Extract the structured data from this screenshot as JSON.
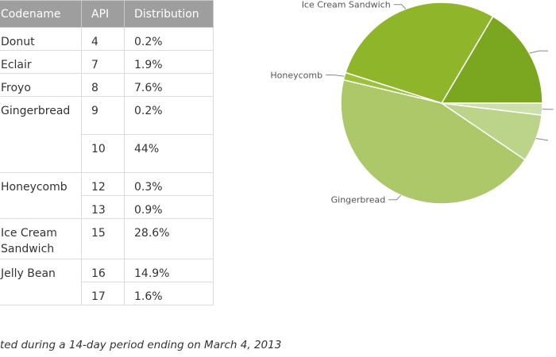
{
  "table": {
    "headers": [
      "Codename",
      "API",
      "Distribution"
    ],
    "rows": [
      {
        "codename": "Donut",
        "api": "4",
        "dist": "0.2%"
      },
      {
        "codename": "Eclair",
        "api": "7",
        "dist": "1.9%"
      },
      {
        "codename": "Froyo",
        "api": "8",
        "dist": "7.6%"
      },
      {
        "codename": "Gingerbread",
        "api": "9",
        "dist": "0.2%"
      },
      {
        "codename": "",
        "api": "10",
        "dist": "44%"
      },
      {
        "codename": "Honeycomb",
        "api": "12",
        "dist": "0.3%"
      },
      {
        "codename": "",
        "api": "13",
        "dist": "0.9%"
      },
      {
        "codename": "Ice Cream Sandwich",
        "api": "15",
        "dist": "28.6%"
      },
      {
        "codename": "Jelly Bean",
        "api": "16",
        "dist": "14.9%"
      },
      {
        "codename": "",
        "api": "17",
        "dist": "1.6%"
      }
    ]
  },
  "footnote": "ted during a 14-day period ending on March 4, 2013",
  "chart_data": {
    "type": "pie",
    "slices": [
      {
        "label": "",
        "value": 16.5,
        "color": "#7ba61f"
      },
      {
        "label": "Ice Cream Sandwich",
        "value": 28.6,
        "color": "#8fb52b"
      },
      {
        "label": "Honeycomb",
        "value": 1.2,
        "color": "#9fc03b"
      },
      {
        "label": "Gingerbread",
        "value": 44.2,
        "color": "#adc868"
      },
      {
        "label": "",
        "value": 7.6,
        "color": "#bcd48a"
      },
      {
        "label": "",
        "value": 1.9,
        "color": "#cde0ab"
      }
    ],
    "legend": "none"
  }
}
